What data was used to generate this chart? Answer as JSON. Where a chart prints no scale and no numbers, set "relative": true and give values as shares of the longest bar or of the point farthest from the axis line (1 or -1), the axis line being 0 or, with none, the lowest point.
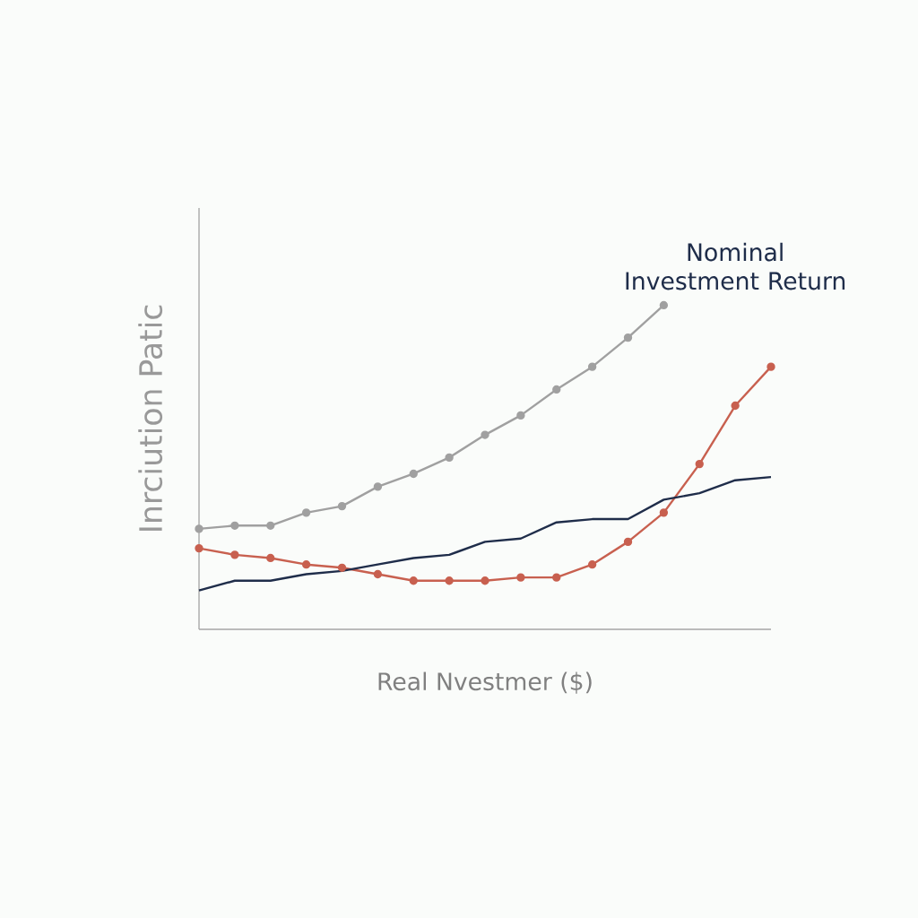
{
  "chart_data": {
    "type": "line",
    "relative": true,
    "xlabel": "Real Nvestmer ($)",
    "ylabel": "Inrciution Patic",
    "annotations": [
      "Nominal Investment Return"
    ],
    "categories": [
      null,
      null,
      null,
      null,
      null,
      null,
      null,
      null,
      null,
      null,
      null,
      null,
      null,
      null,
      null,
      null,
      null
    ],
    "series": [
      {
        "color": "#a0a0a0",
        "marker": "circle",
        "values": [
          0.31,
          0.32,
          0.32,
          0.36,
          0.38,
          0.44,
          0.48,
          0.53,
          0.6,
          0.66,
          0.74,
          0.81,
          0.9,
          1.0,
          null,
          null,
          null
        ]
      },
      {
        "color": "#c8604f",
        "marker": "circle",
        "values": [
          0.25,
          0.23,
          0.22,
          0.2,
          0.19,
          0.17,
          0.15,
          0.15,
          0.15,
          0.16,
          0.16,
          0.2,
          0.27,
          0.36,
          0.51,
          0.69,
          0.81
        ]
      },
      {
        "color": "#1f2d4a",
        "values": [
          0.12,
          0.15,
          0.15,
          0.17,
          0.18,
          0.2,
          0.22,
          0.23,
          0.27,
          0.28,
          0.33,
          0.34,
          0.34,
          0.4,
          0.42,
          0.46,
          0.47
        ]
      }
    ]
  }
}
